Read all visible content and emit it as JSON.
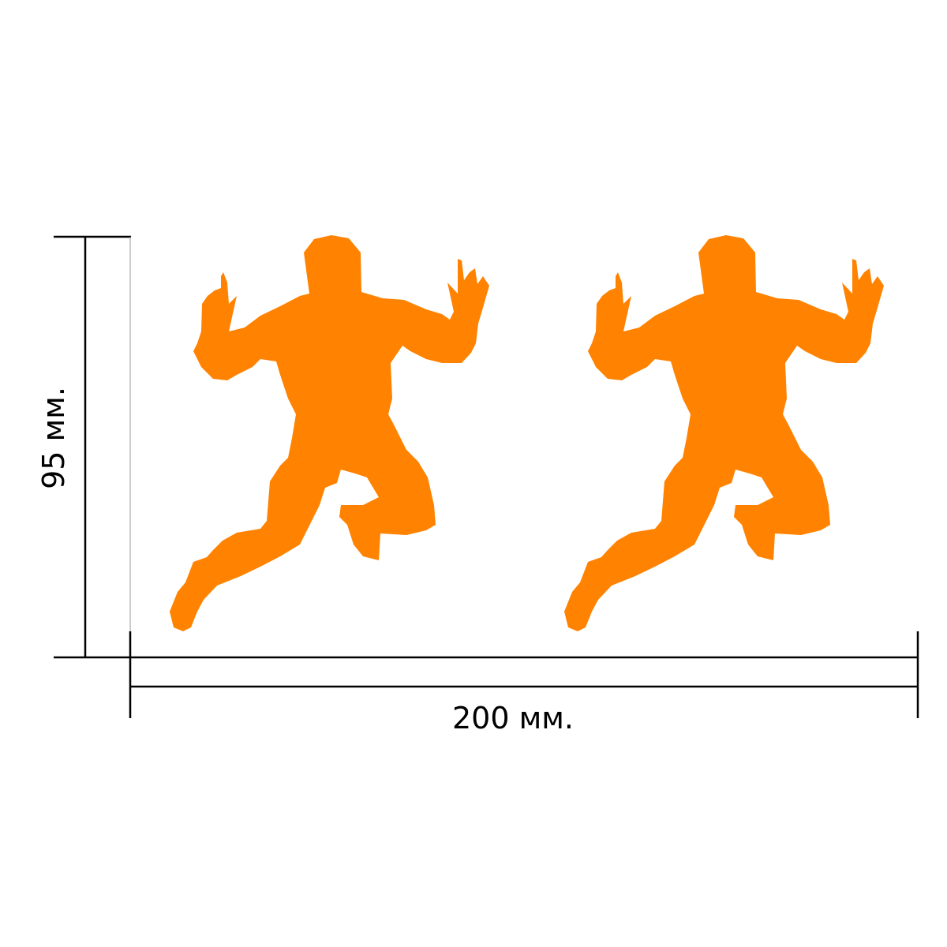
{
  "dimensions": {
    "width_label": "200 мм.",
    "height_label": "95 мм."
  },
  "figures": {
    "count": 2,
    "icon": "jumping-person-silhouette",
    "color": "#FF8200"
  },
  "colors": {
    "lines": "#000000",
    "background": "#FFFFFF"
  }
}
